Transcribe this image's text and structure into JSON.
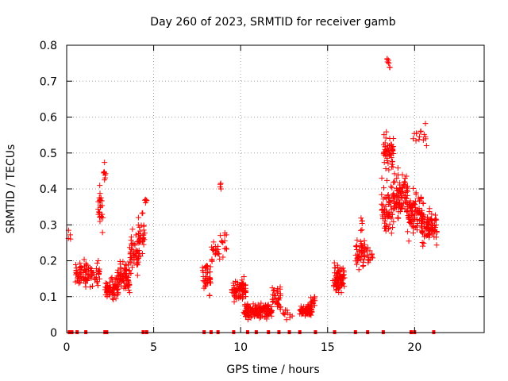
{
  "chart_data": {
    "type": "scatter",
    "title": "Day 260 of 2023, SRMTID for receiver gamb",
    "xlabel": "GPS time / hours",
    "ylabel": "SRMTID / TECUs",
    "xlim": [
      0,
      24
    ],
    "ylim": [
      0,
      0.8
    ],
    "x_ticks": [
      0,
      5,
      10,
      15,
      20
    ],
    "x_tick_labels": [
      "0",
      "5",
      "10",
      "15",
      "20"
    ],
    "y_ticks": [
      0,
      0.1,
      0.2,
      0.3,
      0.4,
      0.5,
      0.6,
      0.7,
      0.8
    ],
    "y_tick_labels": [
      "0",
      "0.1",
      "0.2",
      "0.3",
      "0.4",
      "0.5",
      "0.6",
      "0.7",
      "0.8"
    ],
    "grid": true,
    "marker": "+",
    "color": "#ff0000",
    "zero_markers_x": [
      0.15,
      0.3,
      0.6,
      1.1,
      2.2,
      2.3,
      4.4,
      4.6,
      7.9,
      8.3,
      8.7,
      9.6,
      10.4,
      10.9,
      11.6,
      12.2,
      12.8,
      13.4,
      14.3,
      15.4,
      16.6,
      17.3,
      18.2,
      19.8,
      20.0,
      21.1
    ],
    "clusters": [
      {
        "x_range": [
          0.1,
          0.3
        ],
        "y_center": 0.27,
        "y_spread": 0.02,
        "count": 4
      },
      {
        "x_range": [
          0.5,
          1.9
        ],
        "y_center": 0.16,
        "y_spread": 0.05,
        "count": 90
      },
      {
        "x_range": [
          1.8,
          2.1
        ],
        "y_center": 0.35,
        "y_spread": 0.1,
        "count": 25
      },
      {
        "x_range": [
          2.1,
          2.25
        ],
        "y_center": 0.44,
        "y_spread": 0.04,
        "count": 8
      },
      {
        "x_range": [
          2.2,
          3.0
        ],
        "y_center": 0.12,
        "y_spread": 0.04,
        "count": 70
      },
      {
        "x_range": [
          2.9,
          3.7
        ],
        "y_center": 0.16,
        "y_spread": 0.06,
        "count": 70
      },
      {
        "x_range": [
          3.6,
          4.2
        ],
        "y_center": 0.22,
        "y_spread": 0.08,
        "count": 50
      },
      {
        "x_range": [
          4.1,
          4.5
        ],
        "y_center": 0.28,
        "y_spread": 0.08,
        "count": 30
      },
      {
        "x_range": [
          4.4,
          4.6
        ],
        "y_center": 0.37,
        "y_spread": 0.02,
        "count": 5
      },
      {
        "x_range": [
          7.8,
          8.3
        ],
        "y_center": 0.15,
        "y_spread": 0.07,
        "count": 40
      },
      {
        "x_range": [
          8.3,
          8.8
        ],
        "y_center": 0.22,
        "y_spread": 0.05,
        "count": 20
      },
      {
        "x_range": [
          8.8,
          8.9
        ],
        "y_center": 0.4,
        "y_spread": 0.03,
        "count": 4
      },
      {
        "x_range": [
          8.8,
          9.2
        ],
        "y_center": 0.25,
        "y_spread": 0.05,
        "count": 12
      },
      {
        "x_range": [
          9.5,
          10.3
        ],
        "y_center": 0.12,
        "y_spread": 0.04,
        "count": 80
      },
      {
        "x_range": [
          10.2,
          11.8
        ],
        "y_center": 0.06,
        "y_spread": 0.03,
        "count": 160
      },
      {
        "x_range": [
          11.8,
          12.3
        ],
        "y_center": 0.1,
        "y_spread": 0.05,
        "count": 35
      },
      {
        "x_range": [
          12.3,
          13.0
        ],
        "y_center": 0.05,
        "y_spread": 0.02,
        "count": 10
      },
      {
        "x_range": [
          13.4,
          14.1
        ],
        "y_center": 0.06,
        "y_spread": 0.02,
        "count": 90
      },
      {
        "x_range": [
          14.0,
          14.3
        ],
        "y_center": 0.08,
        "y_spread": 0.03,
        "count": 15
      },
      {
        "x_range": [
          15.3,
          16.0
        ],
        "y_center": 0.15,
        "y_spread": 0.05,
        "count": 70
      },
      {
        "x_range": [
          16.6,
          17.2
        ],
        "y_center": 0.22,
        "y_spread": 0.06,
        "count": 45
      },
      {
        "x_range": [
          16.9,
          17.0
        ],
        "y_center": 0.3,
        "y_spread": 0.04,
        "count": 6
      },
      {
        "x_range": [
          17.2,
          17.6
        ],
        "y_center": 0.21,
        "y_spread": 0.05,
        "count": 15
      },
      {
        "x_range": [
          18.1,
          18.8
        ],
        "y_center": 0.35,
        "y_spread": 0.1,
        "count": 70
      },
      {
        "x_range": [
          18.2,
          18.8
        ],
        "y_center": 0.5,
        "y_spread": 0.08,
        "count": 50
      },
      {
        "x_range": [
          18.4,
          18.6
        ],
        "y_center": 0.75,
        "y_spread": 0.03,
        "count": 8
      },
      {
        "x_range": [
          18.8,
          19.6
        ],
        "y_center": 0.38,
        "y_spread": 0.1,
        "count": 90
      },
      {
        "x_range": [
          19.6,
          20.5
        ],
        "y_center": 0.33,
        "y_spread": 0.08,
        "count": 90
      },
      {
        "x_range": [
          19.9,
          20.7
        ],
        "y_center": 0.55,
        "y_spread": 0.05,
        "count": 15
      },
      {
        "x_range": [
          20.4,
          21.3
        ],
        "y_center": 0.29,
        "y_spread": 0.07,
        "count": 80
      }
    ]
  }
}
